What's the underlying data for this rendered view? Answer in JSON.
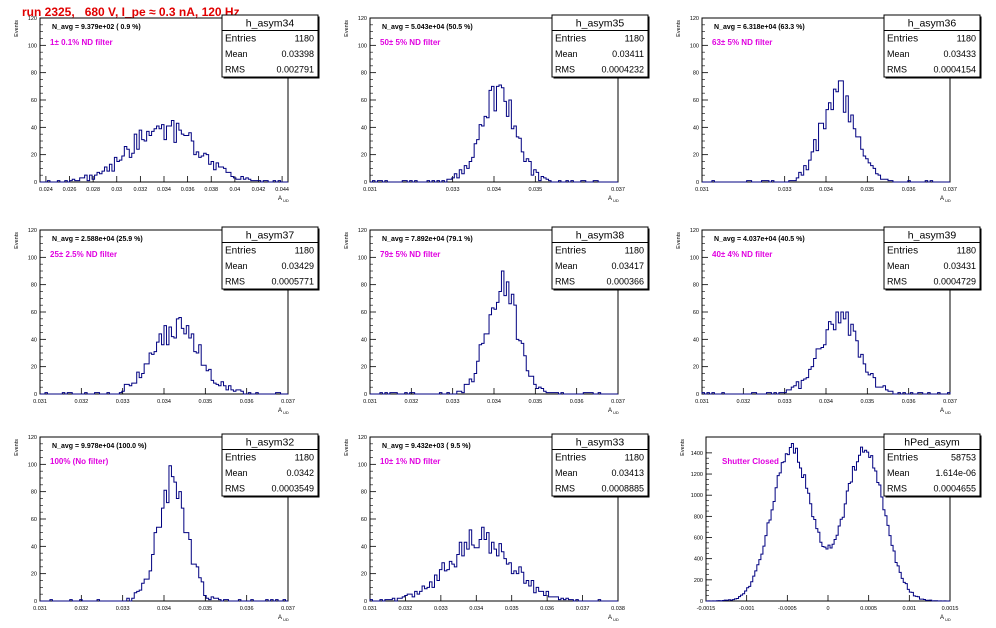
{
  "title": "run 2325,   680 V, I_pe ≈ 0.3 nA, 120 Hz",
  "colors": {
    "title": "#e00000",
    "histogram": "#000080",
    "annotation": "#e000e0",
    "axis": "#000000"
  },
  "chart_data": [
    {
      "type": "histogram",
      "stat_title": "h_asym34",
      "entries": "1180",
      "mean": "0.03398",
      "rms": "0.002791",
      "n_avg_label": "N_avg = 9.379e+02 ( 0.9 %)",
      "filter_label": "1± 0.1% ND filter",
      "ylabel": "Events",
      "xlabel": "A",
      "xlabel_sub": "UD",
      "xlim": [
        0.0235,
        0.0445
      ],
      "ylim": [
        0,
        120
      ],
      "x_ticks": [
        0.024,
        0.026,
        0.028,
        0.03,
        0.032,
        0.034,
        0.036,
        0.038,
        0.04,
        0.042,
        0.044
      ],
      "x_tick_labels": [
        "0.024",
        "0.026",
        "0.028",
        "0.03",
        "0.032",
        "0.034",
        "0.036",
        "0.038",
        "0.04",
        "0.042",
        "0.044"
      ],
      "y_ticks": [
        0,
        20,
        40,
        60,
        80,
        100,
        120
      ],
      "y_tick_labels": [
        "0",
        "20",
        "40",
        "60",
        "80",
        "100",
        "120"
      ],
      "gen": {
        "mode": "gauss",
        "mu": 0.034,
        "sigma": 0.0028,
        "peak": 40,
        "seed": 1
      }
    },
    {
      "type": "histogram",
      "stat_title": "h_asym35",
      "entries": "1180",
      "mean": "0.03411",
      "rms": "0.0004232",
      "n_avg_label": "N_avg = 5.043e+04 (50.5 %)",
      "filter_label": "50± 5% ND filter",
      "ylabel": "Events",
      "xlabel": "A",
      "xlabel_sub": "UD",
      "xlim": [
        0.031,
        0.037
      ],
      "ylim": [
        0,
        120
      ],
      "x_ticks": [
        0.031,
        0.033,
        0.034,
        0.035,
        0.037
      ],
      "x_tick_labels": [
        "0.031",
        "0.033",
        "0.034",
        "0.035",
        "0.037"
      ],
      "y_ticks": [
        0,
        20,
        40,
        60,
        80,
        100,
        120
      ],
      "y_tick_labels": [
        "0",
        "20",
        "40",
        "60",
        "80",
        "100",
        "120"
      ],
      "gen": {
        "mode": "gauss",
        "mu": 0.0341,
        "sigma": 0.00042,
        "peak": 64,
        "seed": 2
      }
    },
    {
      "type": "histogram",
      "stat_title": "h_asym36",
      "entries": "1180",
      "mean": "0.03433",
      "rms": "0.0004154",
      "n_avg_label": "N_avg = 6.318e+04 (63.3 %)",
      "filter_label": "63± 5% ND filter",
      "ylabel": "Events",
      "xlabel": "A",
      "xlabel_sub": "UD",
      "xlim": [
        0.031,
        0.037
      ],
      "ylim": [
        0,
        120
      ],
      "x_ticks": [
        0.031,
        0.033,
        0.034,
        0.035,
        0.036,
        0.037
      ],
      "x_tick_labels": [
        "0.031",
        "0.033",
        "0.034",
        "0.035",
        "0.036",
        "0.037"
      ],
      "y_ticks": [
        0,
        20,
        40,
        60,
        80,
        100,
        120
      ],
      "y_tick_labels": [
        "0",
        "20",
        "40",
        "60",
        "80",
        "100",
        "120"
      ],
      "gen": {
        "mode": "gauss",
        "mu": 0.0343,
        "sigma": 0.00041,
        "peak": 65,
        "seed": 3
      }
    },
    {
      "type": "histogram",
      "stat_title": "h_asym37",
      "entries": "1180",
      "mean": "0.03429",
      "rms": "0.0005771",
      "n_avg_label": "N_avg = 2.588e+04 (25.9 %)",
      "filter_label": "25± 2.5% ND filter",
      "ylabel": "Events",
      "xlabel": "A",
      "xlabel_sub": "UD",
      "xlim": [
        0.031,
        0.037
      ],
      "ylim": [
        0,
        120
      ],
      "x_ticks": [
        0.031,
        0.032,
        0.033,
        0.034,
        0.035,
        0.036,
        0.037
      ],
      "x_tick_labels": [
        "0.031",
        "0.032",
        "0.033",
        "0.034",
        "0.035",
        "0.036",
        "0.037"
      ],
      "y_ticks": [
        0,
        20,
        40,
        60,
        80,
        100,
        120
      ],
      "y_tick_labels": [
        "0",
        "20",
        "40",
        "60",
        "80",
        "100",
        "120"
      ],
      "gen": {
        "mode": "gauss",
        "mu": 0.0343,
        "sigma": 0.00057,
        "peak": 48,
        "seed": 4
      }
    },
    {
      "type": "histogram",
      "stat_title": "h_asym38",
      "entries": "1180",
      "mean": "0.03417",
      "rms": "0.000366",
      "n_avg_label": "N_avg = 7.892e+04 (79.1 %)",
      "filter_label": "79± 5% ND filter",
      "ylabel": "Events",
      "xlabel": "A",
      "xlabel_sub": "UD",
      "xlim": [
        0.031,
        0.037
      ],
      "ylim": [
        0,
        120
      ],
      "x_ticks": [
        0.031,
        0.032,
        0.033,
        0.034,
        0.035,
        0.036,
        0.037
      ],
      "x_tick_labels": [
        "0.031",
        "0.032",
        "0.033",
        "0.034",
        "0.035",
        "0.036",
        "0.037"
      ],
      "y_ticks": [
        0,
        20,
        40,
        60,
        80,
        100,
        120
      ],
      "y_tick_labels": [
        "0",
        "20",
        "40",
        "60",
        "80",
        "100",
        "120"
      ],
      "gen": {
        "mode": "gauss",
        "mu": 0.0342,
        "sigma": 0.00037,
        "peak": 80,
        "seed": 5
      }
    },
    {
      "type": "histogram",
      "stat_title": "h_asym39",
      "entries": "1180",
      "mean": "0.03431",
      "rms": "0.0004729",
      "n_avg_label": "N_avg = 4.037e+04 (40.5 %)",
      "filter_label": "40± 4% ND filter",
      "ylabel": "Events",
      "xlabel": "A",
      "xlabel_sub": "UD",
      "xlim": [
        0.031,
        0.037
      ],
      "ylim": [
        0,
        120
      ],
      "x_ticks": [
        0.031,
        0.032,
        0.033,
        0.034,
        0.035,
        0.036,
        0.037
      ],
      "x_tick_labels": [
        "0.031",
        "0.032",
        "0.033",
        "0.034",
        "0.035",
        "0.036",
        "0.037"
      ],
      "y_ticks": [
        0,
        20,
        40,
        60,
        80,
        100,
        120
      ],
      "y_tick_labels": [
        "0",
        "20",
        "40",
        "60",
        "80",
        "100",
        "120"
      ],
      "gen": {
        "mode": "gauss",
        "mu": 0.0343,
        "sigma": 0.00047,
        "peak": 56,
        "seed": 6
      }
    },
    {
      "type": "histogram",
      "stat_title": "h_asym32",
      "entries": "1180",
      "mean": "0.0342",
      "rms": "0.0003549",
      "n_avg_label": "N_avg = 9.978e+04 (100.0 %)",
      "filter_label": "100% (No filter)",
      "ylabel": "Events",
      "xlabel": "A",
      "xlabel_sub": "UD",
      "xlim": [
        0.031,
        0.037
      ],
      "ylim": [
        0,
        120
      ],
      "x_ticks": [
        0.031,
        0.032,
        0.033,
        0.034,
        0.035,
        0.036,
        0.037
      ],
      "x_tick_labels": [
        "0.031",
        "0.032",
        "0.033",
        "0.034",
        "0.035",
        "0.036",
        "0.037"
      ],
      "y_ticks": [
        0,
        20,
        40,
        60,
        80,
        100,
        120
      ],
      "y_tick_labels": [
        "0",
        "20",
        "40",
        "60",
        "80",
        "100",
        "120"
      ],
      "gen": {
        "mode": "gauss",
        "mu": 0.0342,
        "sigma": 0.00035,
        "peak": 88,
        "seed": 7
      }
    },
    {
      "type": "histogram",
      "stat_title": "h_asym33",
      "entries": "1180",
      "mean": "0.03413",
      "rms": "0.0008885",
      "n_avg_label": "N_avg = 9.432e+03 ( 9.5 %)",
      "filter_label": "10± 1% ND filter",
      "ylabel": "Events",
      "xlabel": "A",
      "xlabel_sub": "UD",
      "xlim": [
        0.031,
        0.038
      ],
      "ylim": [
        0,
        120
      ],
      "x_ticks": [
        0.031,
        0.032,
        0.033,
        0.034,
        0.035,
        0.036,
        0.037,
        0.038
      ],
      "x_tick_labels": [
        "0.031",
        "0.032",
        "0.033",
        "0.034",
        "0.035",
        "0.036",
        "0.037",
        "0.038"
      ],
      "y_ticks": [
        0,
        20,
        40,
        60,
        80,
        100,
        120
      ],
      "y_tick_labels": [
        "0",
        "20",
        "40",
        "60",
        "80",
        "100",
        "120"
      ],
      "gen": {
        "mode": "gauss",
        "mu": 0.0341,
        "sigma": 0.00088,
        "peak": 45,
        "seed": 8
      }
    },
    {
      "type": "histogram",
      "stat_title": "hPed_asym",
      "entries": "58753",
      "mean": "1.614e-06",
      "rms": "0.0004655",
      "n_avg_label": "",
      "filter_label": "Shutter Closed",
      "ylabel": "Events",
      "xlabel": "A",
      "xlabel_sub": "UD",
      "xlim": [
        -0.0015,
        0.0015
      ],
      "ylim": [
        0,
        1550
      ],
      "x_ticks": [
        -0.0015,
        -0.001,
        -0.0005,
        0,
        0.0005,
        0.001,
        0.0015
      ],
      "x_tick_labels": [
        "-0.0015",
        "-0.001",
        "-0.0005",
        "0",
        "0.0005",
        "0.001",
        "0.0015"
      ],
      "y_ticks": [
        0,
        200,
        400,
        600,
        800,
        1000,
        1200,
        1400
      ],
      "y_tick_labels": [
        "0",
        "200",
        "400",
        "600",
        "800",
        "1000",
        "1200",
        "1400"
      ],
      "gen": {
        "mode": "double",
        "mu1": -0.00045,
        "mu2": 0.00045,
        "sigma": 0.00024,
        "peak": 1430,
        "seed": 9
      }
    }
  ]
}
